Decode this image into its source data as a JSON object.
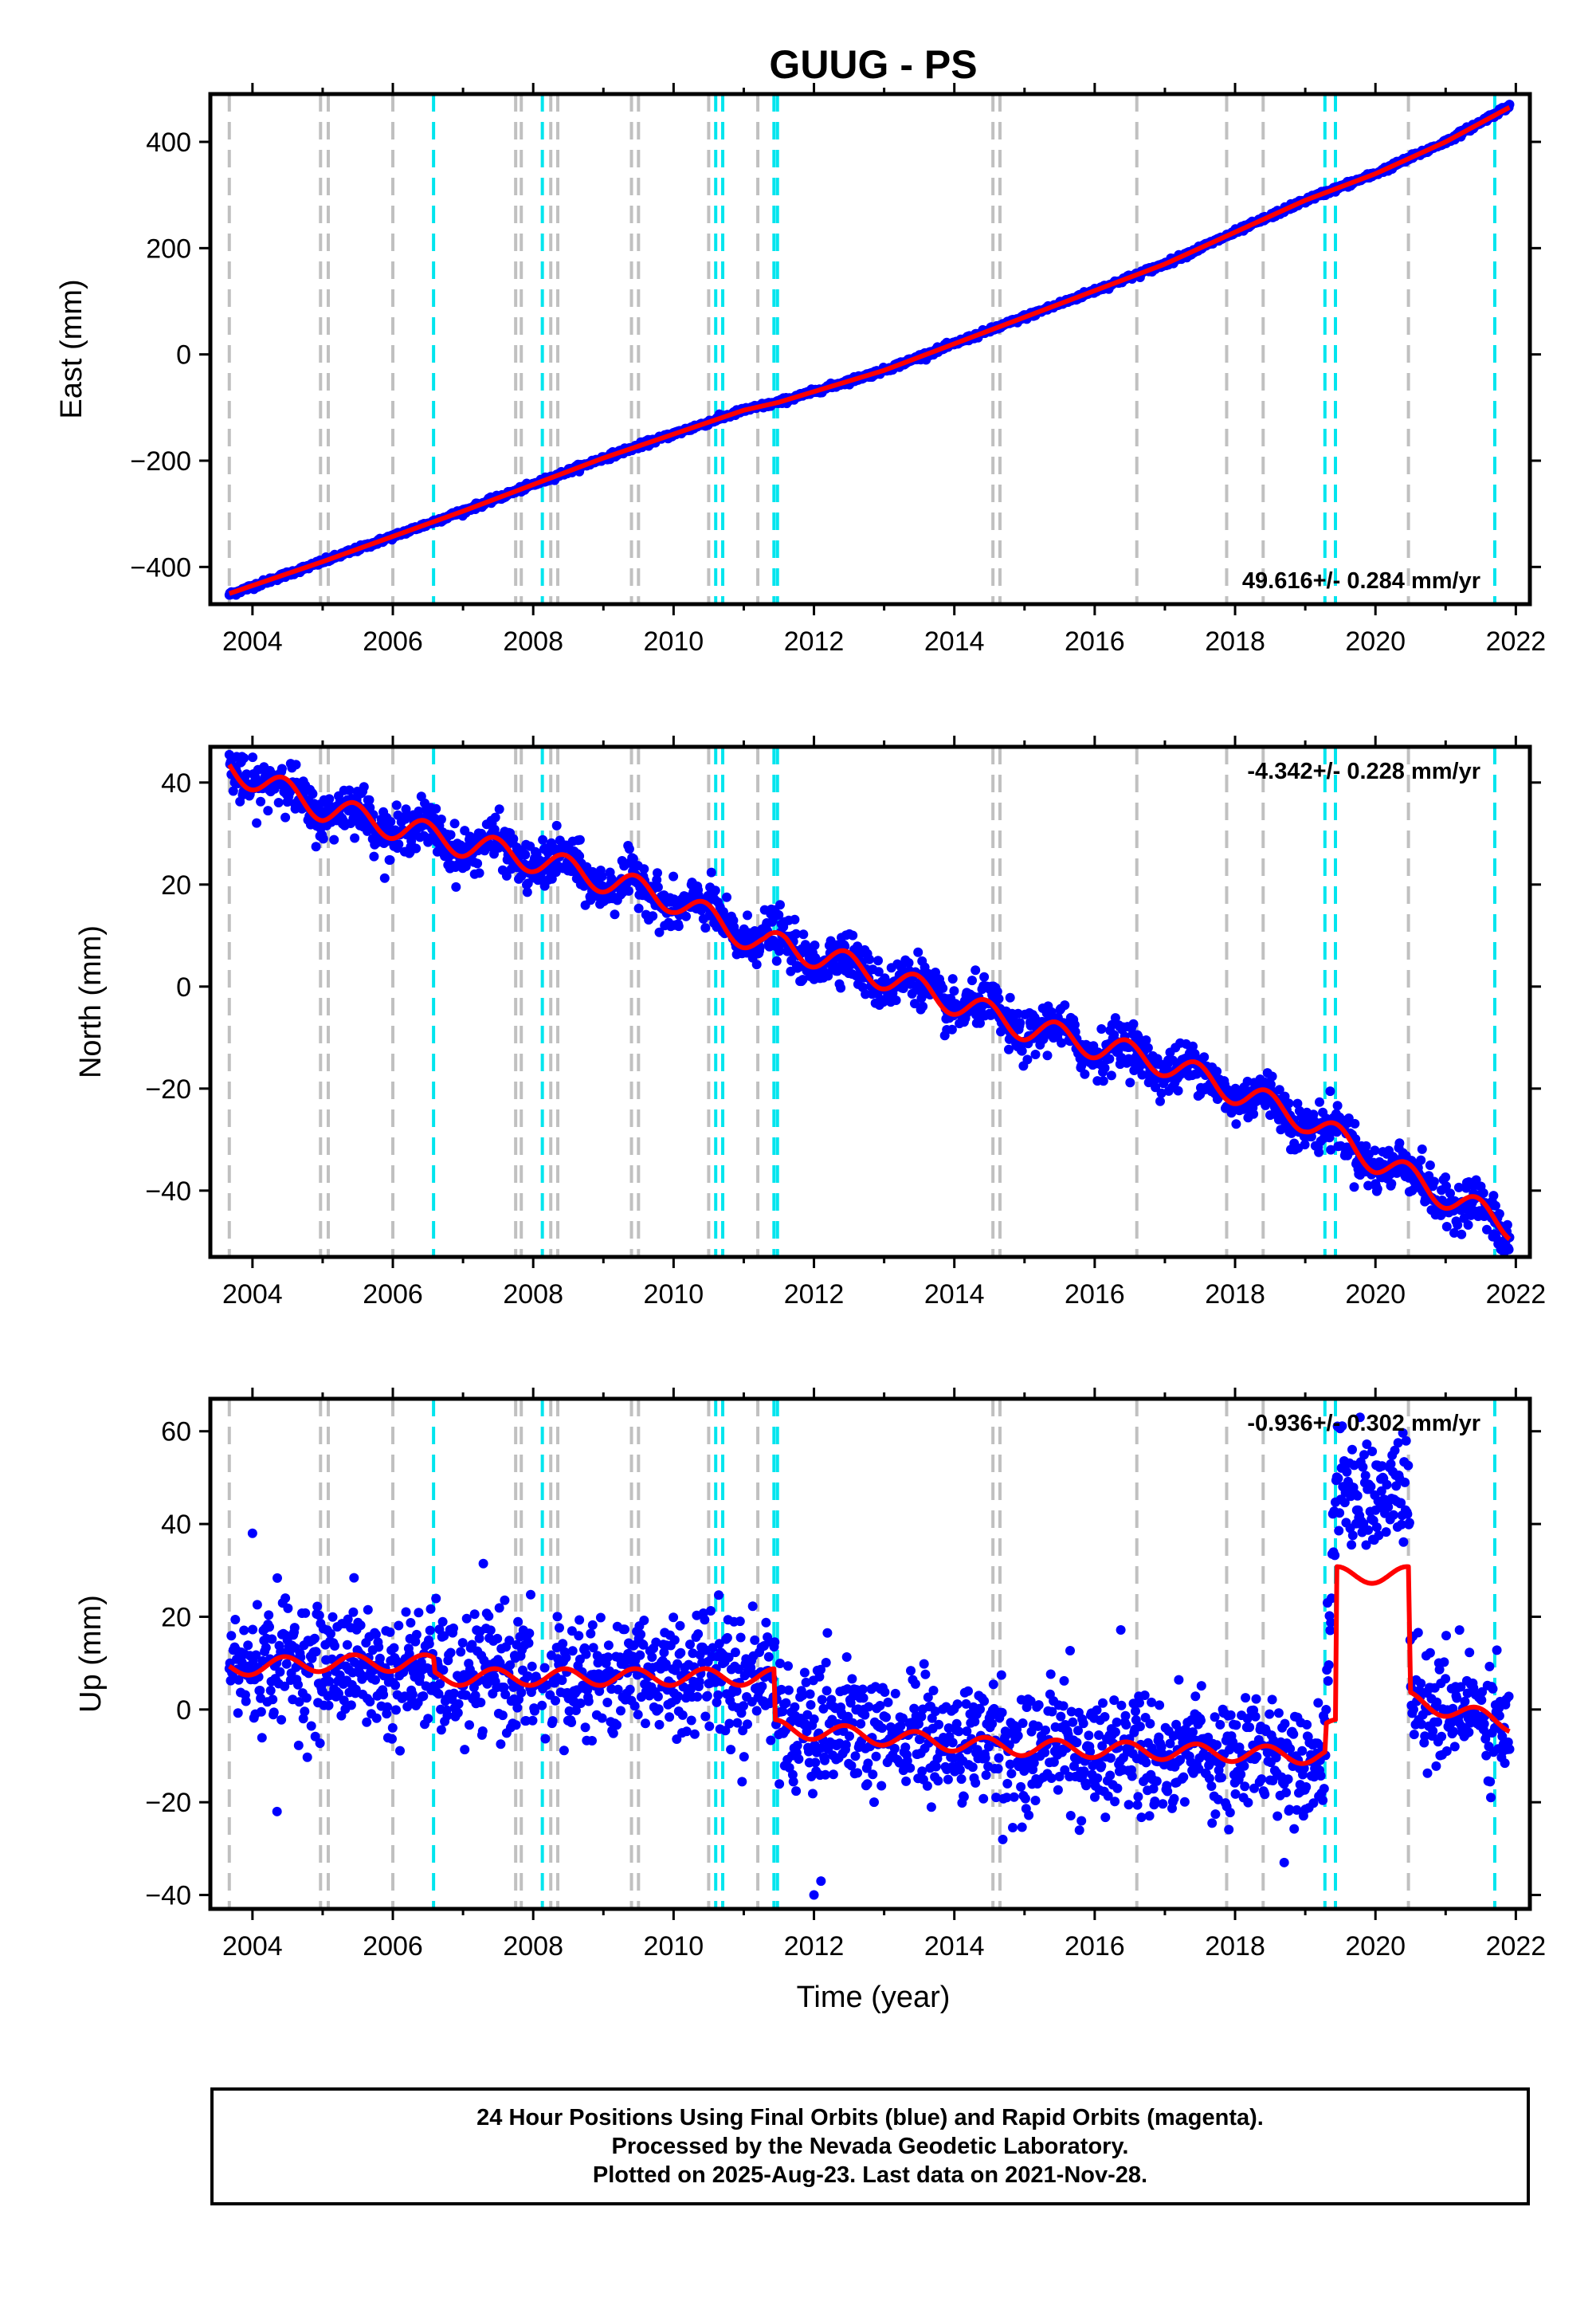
{
  "chart_data": {
    "type": "scatter",
    "title": "GUUG - PS",
    "xlabel": "Time (year)",
    "xlim": [
      2003.4,
      2022.2
    ],
    "xticks": [
      2004,
      2006,
      2008,
      2010,
      2012,
      2014,
      2016,
      2018,
      2020,
      2022
    ],
    "data_start": 2003.67,
    "data_end": 2021.91,
    "equipment_change_lines_gray": [
      2003.67,
      2004.97,
      2005.08,
      2006.0,
      2007.75,
      2007.83,
      2008.25,
      2008.35,
      2009.4,
      2009.5,
      2010.5,
      2011.2,
      2014.55,
      2014.65,
      2016.6,
      2017.88,
      2018.4,
      2020.47
    ],
    "earthquake_lines_cyan": [
      2006.58,
      2008.13,
      2010.6,
      2010.7,
      2011.43,
      2011.48,
      2019.28,
      2019.43,
      2021.7
    ],
    "colors": {
      "data": "#0000ff",
      "model": "#ff0000",
      "equipment_lines": "#c0c0c0",
      "earthquake_lines": "#00e5ee"
    },
    "panels": [
      {
        "component": "east",
        "ylabel": "East (mm)",
        "ylim": [
          -470,
          490
        ],
        "yticks": [
          -400,
          -200,
          0,
          200,
          400
        ],
        "rate_label": "49.616+/- 0.284 mm/yr",
        "rate_position": "bottom-right",
        "series": [
          {
            "name": "data",
            "x": [
              2003.67,
              2005.0,
              2007.0,
              2009.0,
              2011.0,
              2011.5,
              2013.0,
              2015.0,
              2017.0,
              2019.0,
              2020.0,
              2021.0,
              2021.91
            ],
            "y": [
              -452,
              -390,
              -295,
              -195,
              -105,
              -90,
              -30,
              70,
              170,
              290,
              340,
              400,
              468
            ]
          },
          {
            "name": "model",
            "x": [
              2003.67,
              2005.0,
              2007.0,
              2009.0,
              2011.0,
              2011.5,
              2013.0,
              2015.0,
              2017.0,
              2019.0,
              2020.0,
              2021.0,
              2021.91
            ],
            "y": [
              -450,
              -390,
              -295,
              -195,
              -105,
              -90,
              -30,
              70,
              170,
              290,
              340,
              400,
              465
            ]
          }
        ]
      },
      {
        "component": "north",
        "ylabel": "North (mm)",
        "ylim": [
          -53,
          47
        ],
        "yticks": [
          -40,
          -20,
          0,
          20,
          40
        ],
        "rate_label": "-4.342+/- 0.228 mm/yr",
        "rate_position": "top-right",
        "series": [
          {
            "name": "data",
            "x": [
              2003.67,
              2005.0,
              2007.0,
              2008.0,
              2010.0,
              2011.3,
              2011.6,
              2013.0,
              2015.0,
              2017.0,
              2019.0,
              2020.0,
              2021.0,
              2021.91
            ],
            "y": [
              43,
              35,
              28,
              25,
              17,
              9,
              8,
              2,
              -8,
              -15,
              -26,
              -34,
              -41,
              -48
            ]
          },
          {
            "name": "model",
            "x": [
              2003.67,
              2005.0,
              2007.0,
              2008.0,
              2010.0,
              2011.3,
              2011.6,
              2013.0,
              2015.0,
              2017.0,
              2019.0,
              2020.0,
              2021.0,
              2021.91
            ],
            "y": [
              43,
              35,
              28,
              25,
              17,
              8,
              8,
              2,
              -8,
              -15,
              -26,
              -34,
              -41,
              -47
            ]
          }
        ]
      },
      {
        "component": "up",
        "ylabel": "Up (mm)",
        "ylim": [
          -43,
          67
        ],
        "yticks": [
          -40,
          -20,
          0,
          20,
          40,
          60
        ],
        "rate_label": "-0.936+/- 0.302 mm/yr",
        "rate_position": "top-right",
        "series": [
          {
            "name": "data",
            "x": [
              2003.67,
              2005.0,
              2006.6,
              2008.0,
              2011.43,
              2011.5,
              2014.6,
              2019.28,
              2019.43,
              2020.47,
              2020.5,
              2021.91
            ],
            "y": [
              10,
              10,
              7,
              8,
              8,
              -4,
              -8,
              -10,
              47,
              47,
              1,
              -2
            ]
          },
          {
            "name": "model",
            "x": [
              2003.67,
              2005.0,
              2006.58,
              2006.6,
              2008.0,
              2011.43,
              2011.45,
              2014.6,
              2019.28,
              2019.3,
              2019.43,
              2019.45,
              2020.47,
              2020.5,
              2021.91
            ],
            "y": [
              9,
              10,
              10,
              7,
              7,
              7,
              -4,
              -8,
              -10,
              -4,
              -4,
              29,
              29,
              2,
              -3
            ]
          }
        ]
      }
    ]
  },
  "footer": {
    "line1": "24 Hour Positions Using Final Orbits (blue) and Rapid Orbits (magenta).",
    "line2": "Processed by the Nevada Geodetic Laboratory.",
    "line3": "Plotted on 2025-Aug-23. Last data on 2021-Nov-28."
  }
}
